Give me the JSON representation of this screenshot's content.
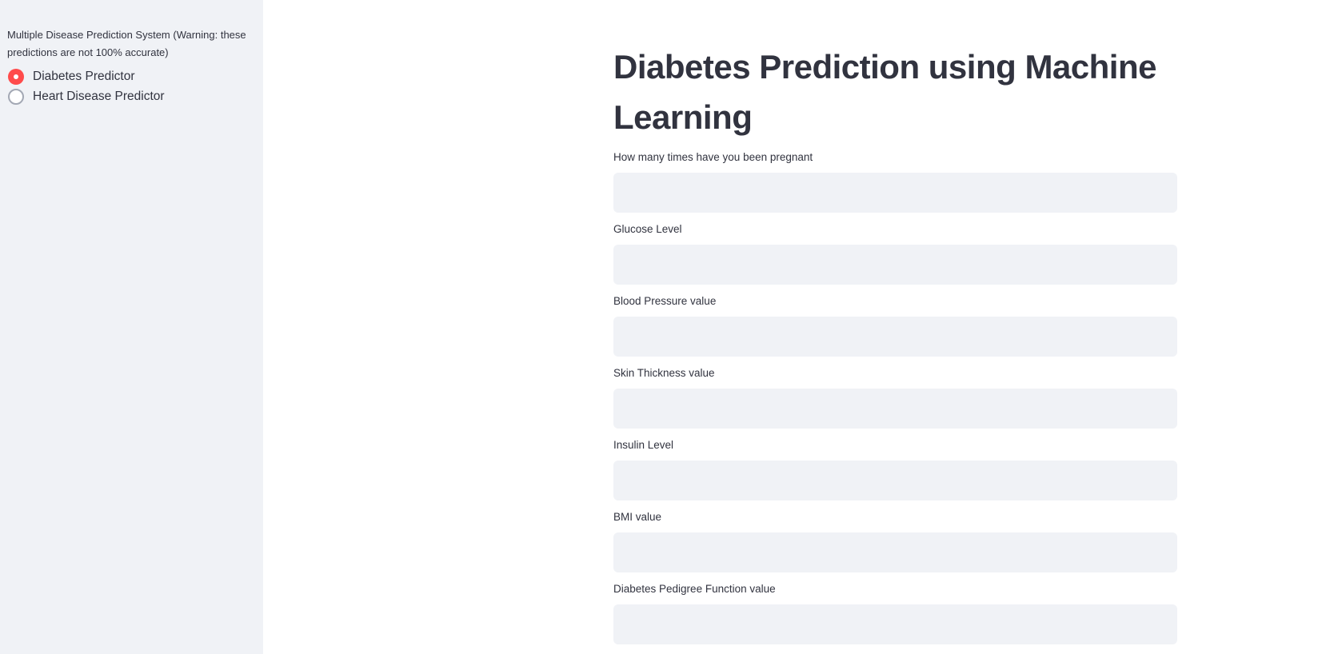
{
  "sidebar": {
    "radio_label": "Multiple Disease Prediction System (Warning: these predictions are not 100% accurate)",
    "options": [
      {
        "label": "Diabetes Predictor",
        "selected": true
      },
      {
        "label": "Heart Disease Predictor",
        "selected": false
      }
    ],
    "accent_color": "#ff4b4b"
  },
  "main": {
    "title": "Diabetes Prediction using Machine Learning",
    "fields": [
      {
        "label": "How many times have you been pregnant",
        "value": ""
      },
      {
        "label": "Glucose Level",
        "value": ""
      },
      {
        "label": "Blood Pressure value",
        "value": ""
      },
      {
        "label": "Skin Thickness value",
        "value": ""
      },
      {
        "label": "Insulin Level",
        "value": ""
      },
      {
        "label": "BMI value",
        "value": ""
      },
      {
        "label": "Diabetes Pedigree Function value",
        "value": ""
      }
    ]
  }
}
